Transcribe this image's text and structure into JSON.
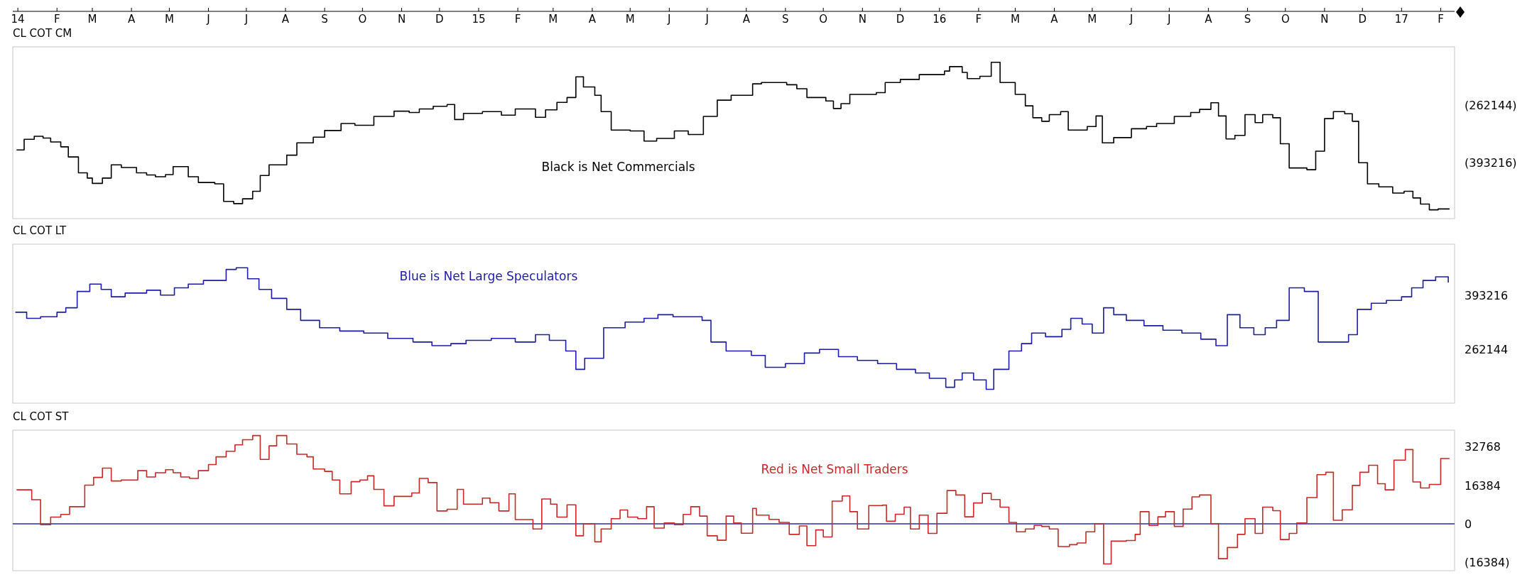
{
  "chart_data": [
    {
      "type": "step",
      "title": "CL COT CM",
      "annotations": [
        "Black is Net Commercials"
      ],
      "xlim": [
        "2013-12-28",
        "2017-02-12"
      ],
      "xticks": [
        {
          "value": "2014-01-01",
          "label": "14"
        },
        {
          "value": "2014-02-01",
          "label": "F"
        },
        {
          "value": "2014-03-01",
          "label": "M"
        },
        {
          "value": "2014-04-01",
          "label": "A"
        },
        {
          "value": "2014-05-01",
          "label": "M"
        },
        {
          "value": "2014-06-01",
          "label": "J"
        },
        {
          "value": "2014-07-01",
          "label": "J"
        },
        {
          "value": "2014-08-01",
          "label": "A"
        },
        {
          "value": "2014-09-01",
          "label": "S"
        },
        {
          "value": "2014-10-01",
          "label": "O"
        },
        {
          "value": "2014-11-01",
          "label": "N"
        },
        {
          "value": "2014-12-01",
          "label": "D"
        },
        {
          "value": "2015-01-01",
          "label": "15"
        },
        {
          "value": "2015-02-01",
          "label": "F"
        },
        {
          "value": "2015-03-01",
          "label": "M"
        },
        {
          "value": "2015-04-01",
          "label": "A"
        },
        {
          "value": "2015-05-01",
          "label": "M"
        },
        {
          "value": "2015-06-01",
          "label": "J"
        },
        {
          "value": "2015-07-01",
          "label": "J"
        },
        {
          "value": "2015-08-01",
          "label": "A"
        },
        {
          "value": "2015-09-01",
          "label": "S"
        },
        {
          "value": "2015-10-01",
          "label": "O"
        },
        {
          "value": "2015-11-01",
          "label": "N"
        },
        {
          "value": "2015-12-01",
          "label": "D"
        },
        {
          "value": "2016-01-01",
          "label": "16"
        },
        {
          "value": "2016-02-01",
          "label": "F"
        },
        {
          "value": "2016-03-01",
          "label": "M"
        },
        {
          "value": "2016-04-01",
          "label": "A"
        },
        {
          "value": "2016-05-01",
          "label": "M"
        },
        {
          "value": "2016-06-01",
          "label": "J"
        },
        {
          "value": "2016-07-01",
          "label": "J"
        },
        {
          "value": "2016-08-01",
          "label": "A"
        },
        {
          "value": "2016-09-01",
          "label": "S"
        },
        {
          "value": "2016-10-01",
          "label": "O"
        },
        {
          "value": "2016-11-01",
          "label": "N"
        },
        {
          "value": "2016-12-01",
          "label": "D"
        },
        {
          "value": "2017-01-01",
          "label": "17"
        },
        {
          "value": "2017-02-01",
          "label": "F"
        }
      ],
      "ylim": [
        -520000,
        -130000
      ],
      "yticks": [
        {
          "value": -262144,
          "label": "(262144)"
        },
        {
          "value": -393216,
          "label": "(393216)"
        }
      ],
      "x": [
        "2013-12-31",
        "2014-01-06",
        "2014-01-14",
        "2014-01-21",
        "2014-01-27",
        "2014-02-04",
        "2014-02-10",
        "2014-02-18",
        "2014-02-25",
        "2014-03-01",
        "2014-03-09",
        "2014-03-16",
        "2014-03-24",
        "2014-04-05",
        "2014-04-13",
        "2014-04-20",
        "2014-04-28",
        "2014-05-04",
        "2014-05-16",
        "2014-05-24",
        "2014-06-06",
        "2014-06-13",
        "2014-06-21",
        "2014-06-28",
        "2014-07-06",
        "2014-07-12",
        "2014-07-19",
        "2014-08-02",
        "2014-08-10",
        "2014-08-23",
        "2014-09-01",
        "2014-09-14",
        "2014-09-25",
        "2014-10-10",
        "2014-10-26",
        "2014-11-07",
        "2014-11-15",
        "2014-11-26",
        "2014-12-07",
        "2014-12-13",
        "2014-12-20",
        "2015-01-04",
        "2015-01-19",
        "2015-01-30",
        "2015-02-15",
        "2015-02-23",
        "2015-03-04",
        "2015-03-12",
        "2015-03-19",
        "2015-03-25",
        "2015-04-03",
        "2015-04-08",
        "2015-04-16",
        "2015-05-01",
        "2015-05-12",
        "2015-05-22",
        "2015-06-05",
        "2015-06-16",
        "2015-06-28",
        "2015-07-09",
        "2015-07-20",
        "2015-08-06",
        "2015-08-13",
        "2015-09-02",
        "2015-09-10",
        "2015-09-18",
        "2015-10-03",
        "2015-10-09",
        "2015-10-15",
        "2015-10-22",
        "2015-11-12",
        "2015-11-19",
        "2015-12-01",
        "2015-12-16",
        "2016-01-05",
        "2016-01-09",
        "2016-01-19",
        "2016-01-23",
        "2016-02-02",
        "2016-02-11",
        "2016-02-18",
        "2016-03-01",
        "2016-03-09",
        "2016-03-15",
        "2016-03-22",
        "2016-03-28",
        "2016-04-06",
        "2016-04-12",
        "2016-04-27",
        "2016-05-04",
        "2016-05-09",
        "2016-05-18",
        "2016-06-01",
        "2016-06-13",
        "2016-06-21",
        "2016-07-05",
        "2016-07-18",
        "2016-07-25",
        "2016-08-03",
        "2016-08-09",
        "2016-08-15",
        "2016-08-22",
        "2016-08-30",
        "2016-09-07",
        "2016-09-13",
        "2016-09-21",
        "2016-09-27",
        "2016-10-04",
        "2016-10-18",
        "2016-10-25",
        "2016-11-01",
        "2016-11-08",
        "2016-11-17",
        "2016-11-23",
        "2016-11-28",
        "2016-12-05",
        "2016-12-14",
        "2016-12-25",
        "2017-01-03",
        "2017-01-10",
        "2017-01-16",
        "2017-01-23",
        "2017-01-30",
        "2017-02-08"
      ],
      "series": [
        {
          "color": "#000000",
          "values": [
            -364000,
            -340000,
            -333000,
            -337000,
            -346000,
            -357000,
            -380000,
            -416000,
            -428000,
            -440000,
            -428000,
            -398000,
            -404000,
            -416000,
            -421000,
            -425000,
            -420000,
            -402000,
            -425000,
            -438000,
            -441000,
            -481000,
            -486000,
            -475000,
            -458000,
            -422000,
            -398000,
            -376000,
            -348000,
            -335000,
            -320000,
            -304000,
            -308000,
            -288000,
            -276000,
            -279000,
            -271000,
            -265000,
            -261000,
            -295000,
            -281000,
            -277000,
            -285000,
            -271000,
            -290000,
            -273000,
            -256000,
            -245000,
            -198000,
            -221000,
            -240000,
            -277000,
            -319000,
            -321000,
            -344000,
            -338000,
            -321000,
            -329000,
            -288000,
            -251000,
            -240000,
            -214000,
            -211000,
            -216000,
            -225000,
            -245000,
            -253000,
            -270000,
            -259000,
            -238000,
            -234000,
            -211000,
            -204000,
            -193000,
            -185000,
            -175000,
            -188000,
            -202000,
            -197000,
            -165000,
            -211000,
            -238000,
            -264000,
            -291000,
            -299000,
            -284000,
            -277000,
            -319000,
            -311000,
            -287000,
            -348000,
            -336000,
            -316000,
            -311000,
            -304000,
            -288000,
            -279000,
            -272000,
            -257000,
            -287000,
            -339000,
            -331000,
            -284000,
            -302000,
            -284000,
            -291000,
            -350000,
            -405000,
            -409000,
            -367000,
            -293000,
            -277000,
            -282000,
            -299000,
            -393000,
            -441000,
            -448000,
            -462000,
            -458000,
            -473000,
            -487000,
            -500000,
            -498000,
            -498000
          ]
        }
      ]
    },
    {
      "type": "step",
      "title": "CL COT LT",
      "annotations": [
        "Blue is Net Large Speculators"
      ],
      "tick_labels": "y",
      "xlim": [
        "2013-12-28",
        "2017-02-12"
      ],
      "ylim": [
        130000,
        520000
      ],
      "yticks": [
        393216,
        262144
      ],
      "x": [
        "2013-12-30",
        "2014-01-08",
        "2014-01-19",
        "2014-02-01",
        "2014-02-08",
        "2014-02-17",
        "2014-02-27",
        "2014-03-08",
        "2014-03-16",
        "2014-03-27",
        "2014-04-13",
        "2014-04-24",
        "2014-05-05",
        "2014-05-16",
        "2014-05-28",
        "2014-06-15",
        "2014-06-23",
        "2014-07-02",
        "2014-07-11",
        "2014-07-21",
        "2014-08-02",
        "2014-08-13",
        "2014-08-28",
        "2014-09-13",
        "2014-10-02",
        "2014-10-21",
        "2014-11-10",
        "2014-11-25",
        "2014-12-10",
        "2014-12-22",
        "2015-01-11",
        "2015-01-30",
        "2015-02-15",
        "2015-02-26",
        "2015-03-11",
        "2015-03-19",
        "2015-03-26",
        "2015-04-10",
        "2015-04-27",
        "2015-05-12",
        "2015-05-23",
        "2015-06-04",
        "2015-06-27",
        "2015-07-04",
        "2015-07-16",
        "2015-08-05",
        "2015-08-16",
        "2015-09-01",
        "2015-09-16",
        "2015-09-28",
        "2015-10-13",
        "2015-10-28",
        "2015-11-13",
        "2015-11-28",
        "2015-12-13",
        "2015-12-24",
        "2016-01-06",
        "2016-01-13",
        "2016-01-19",
        "2016-01-28",
        "2016-02-07",
        "2016-02-13",
        "2016-02-25",
        "2016-03-06",
        "2016-03-14",
        "2016-03-25",
        "2016-04-07",
        "2016-04-14",
        "2016-04-23",
        "2016-05-01",
        "2016-05-10",
        "2016-05-18",
        "2016-05-28",
        "2016-06-11",
        "2016-06-26",
        "2016-07-11",
        "2016-07-26",
        "2016-08-07",
        "2016-08-16",
        "2016-08-26",
        "2016-09-06",
        "2016-09-15",
        "2016-09-24",
        "2016-10-04",
        "2016-10-16",
        "2016-10-27",
        "2016-11-20",
        "2016-11-27",
        "2016-12-08",
        "2016-12-20",
        "2017-01-01",
        "2017-01-09",
        "2017-01-18",
        "2017-01-28",
        "2017-02-07"
      ],
      "series": [
        {
          "color": "#1c1ca8",
          "values": [
            353000,
            338000,
            342000,
            353000,
            364000,
            404000,
            422000,
            409000,
            391000,
            400000,
            407000,
            395000,
            413000,
            422000,
            431000,
            458000,
            462000,
            435000,
            409000,
            387000,
            360000,
            333000,
            315000,
            307000,
            302000,
            289000,
            280000,
            271000,
            276000,
            284000,
            289000,
            280000,
            298000,
            284000,
            258000,
            213000,
            240000,
            315000,
            329000,
            338000,
            347000,
            342000,
            333000,
            280000,
            258000,
            247000,
            218000,
            227000,
            253000,
            262000,
            244000,
            235000,
            227000,
            213000,
            204000,
            191000,
            169000,
            187000,
            204000,
            187000,
            164000,
            213000,
            258000,
            276000,
            302000,
            293000,
            311000,
            338000,
            324000,
            302000,
            364000,
            347000,
            333000,
            320000,
            309000,
            302000,
            287000,
            271000,
            347000,
            315000,
            298000,
            315000,
            333000,
            413000,
            404000,
            280000,
            298000,
            360000,
            375000,
            382000,
            391000,
            413000,
            431000,
            440000,
            426000
          ]
        }
      ]
    },
    {
      "type": "step",
      "title": "CL COT ST",
      "annotations": [
        "Red is Net Small Traders"
      ],
      "tick_labels": "y",
      "xlim": [
        "2013-12-28",
        "2017-02-12"
      ],
      "ylim": [
        -20000,
        40000
      ],
      "yticks": [
        32768,
        16384,
        0,
        {
          "value": -16384,
          "label": "(16384)"
        }
      ],
      "ref_lines": [
        {
          "axis": "y",
          "value": 0,
          "color": "#2a2aa8"
        }
      ],
      "x": [
        "2013-12-31",
        "2014-01-12",
        "2014-01-19",
        "2014-01-27",
        "2014-02-04",
        "2014-02-11",
        "2014-02-23",
        "2014-03-02",
        "2014-03-09",
        "2014-03-16",
        "2014-03-24",
        "2014-04-06",
        "2014-04-13",
        "2014-04-20",
        "2014-04-28",
        "2014-05-04",
        "2014-05-10",
        "2014-05-17",
        "2014-05-24",
        "2014-06-01",
        "2014-06-07",
        "2014-06-15",
        "2014-06-22",
        "2014-06-28",
        "2014-07-06",
        "2014-07-12",
        "2014-07-19",
        "2014-07-25",
        "2014-08-02",
        "2014-08-10",
        "2014-08-18",
        "2014-08-23",
        "2014-09-01",
        "2014-09-07",
        "2014-09-13",
        "2014-09-22",
        "2014-09-29",
        "2014-10-05",
        "2014-10-10",
        "2014-10-18",
        "2014-10-26",
        "2014-11-09",
        "2014-11-15",
        "2014-11-22",
        "2014-11-29",
        "2014-12-07",
        "2014-12-15",
        "2014-12-20",
        "2015-01-04",
        "2015-01-10",
        "2015-01-17",
        "2015-01-25",
        "2015-01-30",
        "2015-02-13",
        "2015-02-20",
        "2015-02-27",
        "2015-03-04",
        "2015-03-12",
        "2015-03-19",
        "2015-03-25",
        "2015-04-03",
        "2015-04-08",
        "2015-04-16",
        "2015-04-23",
        "2015-04-29",
        "2015-05-07",
        "2015-05-14",
        "2015-05-20",
        "2015-05-28",
        "2015-06-05",
        "2015-06-12",
        "2015-06-18",
        "2015-06-25",
        "2015-07-01",
        "2015-07-09",
        "2015-07-16",
        "2015-07-22",
        "2015-07-28",
        "2015-08-06",
        "2015-08-09",
        "2015-08-19",
        "2015-08-27",
        "2015-09-04",
        "2015-09-12",
        "2015-09-18",
        "2015-09-25",
        "2015-10-01",
        "2015-10-08",
        "2015-10-16",
        "2015-10-22",
        "2015-10-28",
        "2015-11-06",
        "2015-11-17",
        "2015-11-20",
        "2015-11-27",
        "2015-12-04",
        "2015-12-09",
        "2015-12-16",
        "2015-12-23",
        "2015-12-30",
        "2016-01-07",
        "2016-01-14",
        "2016-01-21",
        "2016-01-28",
        "2016-02-04",
        "2016-02-11",
        "2016-02-18",
        "2016-02-25",
        "2016-03-02",
        "2016-03-09",
        "2016-03-16",
        "2016-03-22",
        "2016-03-28",
        "2016-04-04",
        "2016-04-13",
        "2016-04-19",
        "2016-04-26",
        "2016-05-03",
        "2016-05-10",
        "2016-05-16",
        "2016-05-28",
        "2016-06-04",
        "2016-06-08",
        "2016-06-15",
        "2016-06-22",
        "2016-06-28",
        "2016-07-05",
        "2016-07-12",
        "2016-07-19",
        "2016-07-25",
        "2016-08-03",
        "2016-08-09",
        "2016-08-16",
        "2016-08-24",
        "2016-08-30",
        "2016-09-07",
        "2016-09-13",
        "2016-09-21",
        "2016-09-27",
        "2016-10-04",
        "2016-10-10",
        "2016-10-18",
        "2016-10-26",
        "2016-11-02",
        "2016-11-08",
        "2016-11-15",
        "2016-11-23",
        "2016-11-29",
        "2016-12-06",
        "2016-12-13",
        "2016-12-19",
        "2016-12-26",
        "2017-01-04",
        "2017-01-10",
        "2017-01-16",
        "2017-01-23",
        "2017-02-01",
        "2017-02-08"
      ],
      "series": [
        {
          "color": "#c82828",
          "values": [
            14500,
            10300,
            -400,
            2900,
            4000,
            7300,
            16500,
            19800,
            23800,
            18300,
            18700,
            22700,
            20000,
            21800,
            23100,
            21800,
            20000,
            19400,
            22700,
            25300,
            28600,
            31000,
            33700,
            35900,
            37700,
            27500,
            33300,
            37700,
            34100,
            29700,
            28600,
            23400,
            22400,
            18700,
            12800,
            18000,
            18700,
            20500,
            14700,
            7700,
            11700,
            13200,
            19400,
            17600,
            5500,
            6200,
            14700,
            8400,
            11000,
            9000,
            5500,
            12800,
            1800,
            -2200,
            10600,
            8400,
            2900,
            8100,
            -5100,
            0,
            -7700,
            -2200,
            2200,
            5900,
            2900,
            2200,
            7300,
            -1800,
            400,
            -400,
            4000,
            7300,
            3300,
            -5100,
            -7000,
            3300,
            400,
            -4000,
            6600,
            3700,
            1900,
            600,
            -4500,
            -900,
            -9300,
            -2600,
            -5600,
            9700,
            11900,
            5200,
            -2200,
            7800,
            8000,
            1100,
            4100,
            7100,
            -2200,
            3700,
            -4100,
            4500,
            14200,
            12300,
            3000,
            8900,
            13000,
            10400,
            7100,
            600,
            -3400,
            -2200,
            -700,
            -1100,
            -2200,
            -9700,
            -8900,
            -8200,
            -3400,
            0,
            -17100,
            -7400,
            -7100,
            -4500,
            5200,
            -700,
            3000,
            5200,
            -1100,
            6300,
            11500,
            12300,
            0,
            -14900,
            -10100,
            -4500,
            2200,
            -4100,
            7100,
            5600,
            -6700,
            -4100,
            400,
            11200,
            21000,
            22000,
            1500,
            6000,
            16400,
            22000,
            25000,
            17100,
            14500,
            27200,
            31700,
            17900,
            15300,
            16800,
            27900,
            27900
          ]
        }
      ]
    }
  ]
}
